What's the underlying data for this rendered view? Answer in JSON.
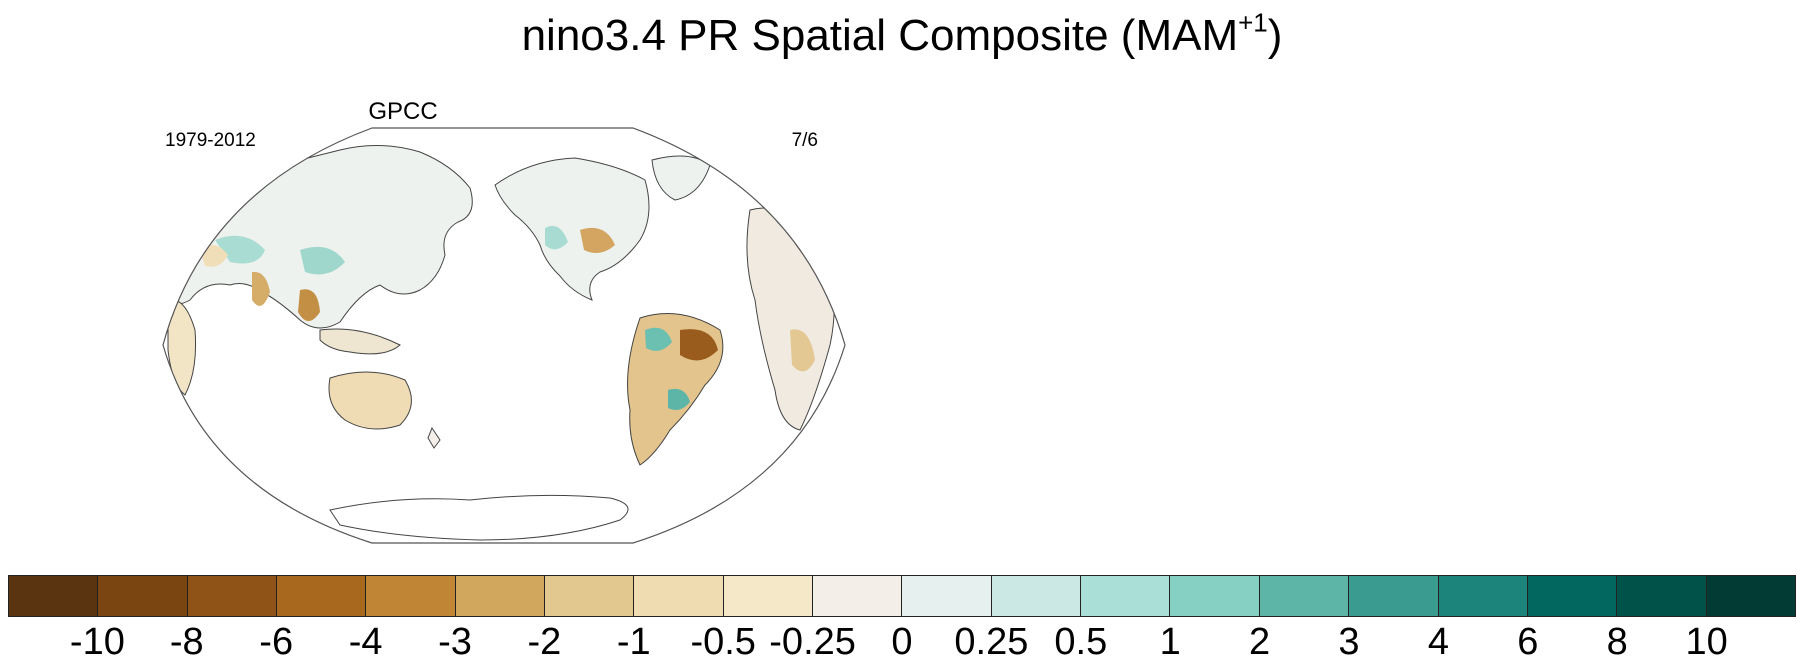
{
  "figure": {
    "title_main": "nino3.4 PR Spatial Composite (MAM",
    "title_sup": "+1",
    "title_close": ")"
  },
  "panel": {
    "title": "GPCC",
    "left_label": "1979-2012",
    "right_label": "7/6"
  },
  "colorbar": {
    "colors": [
      "#5a3410",
      "#7a4511",
      "#8f5317",
      "#a8681e",
      "#c08635",
      "#d1a75d",
      "#e2c78e",
      "#efdcb0",
      "#f4e8c9",
      "#f3efe8",
      "#e6f0ee",
      "#cbe8e4",
      "#aadfd7",
      "#85d0c3",
      "#5db5a8",
      "#3a9c91",
      "#1c847b",
      "#02685f",
      "#015249",
      "#023b33"
    ],
    "labels": [
      "-10",
      "-8",
      "-6",
      "-4",
      "-3",
      "-2",
      "-1",
      "-0.5",
      "-0.25",
      "0",
      "0.25",
      "0.5",
      "1",
      "2",
      "3",
      "4",
      "6",
      "8",
      "10"
    ]
  }
}
